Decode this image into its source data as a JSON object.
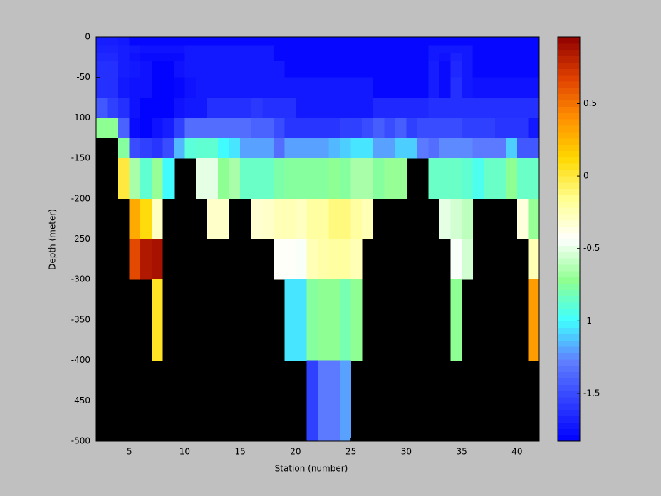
{
  "chart_data": {
    "type": "heatmap",
    "xlabel": "Station (number)",
    "ylabel": "Depth (meter)",
    "x": [
      2,
      3,
      4,
      5,
      6,
      7,
      8,
      9,
      10,
      11,
      12,
      13,
      14,
      15,
      16,
      17,
      18,
      19,
      20,
      21,
      22,
      23,
      24,
      25,
      26,
      27,
      28,
      29,
      30,
      31,
      32,
      33,
      34,
      35,
      36,
      37,
      38,
      39,
      40,
      41,
      42
    ],
    "y": [
      0,
      -10,
      -20,
      -30,
      -50,
      -75,
      -100,
      -125,
      -150,
      -200,
      -250,
      -300,
      -400,
      -500
    ],
    "values": [
      [
        -1.7,
        -1.7,
        -1.72,
        -1.8,
        -1.8,
        -1.8,
        -1.8,
        -1.8,
        -1.8,
        -1.8,
        -1.8,
        -1.8,
        -1.8,
        -1.8,
        -1.8,
        -1.8,
        -1.8,
        -1.8,
        -1.8,
        -1.8,
        -1.8,
        -1.8,
        -1.8,
        -1.8,
        -1.8,
        -1.8,
        -1.8,
        -1.8,
        -1.8,
        -1.8,
        -1.8,
        -1.8,
        -1.8,
        -1.8,
        -1.8,
        -1.8,
        -1.8,
        -1.8,
        -1.8,
        -1.8
      ],
      [
        -1.68,
        -1.68,
        -1.7,
        -1.72,
        -1.75,
        -1.75,
        -1.75,
        -1.75,
        -1.72,
        -1.72,
        -1.72,
        -1.72,
        -1.72,
        -1.72,
        -1.72,
        -1.72,
        -1.8,
        -1.8,
        -1.8,
        -1.8,
        -1.8,
        -1.8,
        -1.8,
        -1.8,
        -1.8,
        -1.8,
        -1.8,
        -1.8,
        -1.8,
        -1.8,
        -1.72,
        -1.72,
        -1.72,
        -1.72,
        -1.8,
        -1.8,
        -1.8,
        -1.8,
        -1.8,
        -1.8
      ],
      [
        -1.65,
        -1.65,
        -1.7,
        -1.75,
        -1.78,
        -1.78,
        -1.78,
        -1.78,
        -1.72,
        -1.72,
        -1.72,
        -1.72,
        -1.72,
        -1.72,
        -1.72,
        -1.72,
        -1.8,
        -1.8,
        -1.8,
        -1.8,
        -1.8,
        -1.8,
        -1.8,
        -1.8,
        -1.8,
        -1.8,
        -1.8,
        -1.8,
        -1.8,
        -1.8,
        -1.72,
        -1.75,
        -1.68,
        -1.72,
        -1.8,
        -1.8,
        -1.8,
        -1.8,
        -1.8,
        -1.8
      ],
      [
        -1.62,
        -1.62,
        -1.7,
        -1.72,
        -1.75,
        -1.82,
        -1.82,
        -1.75,
        -1.72,
        -1.72,
        -1.72,
        -1.72,
        -1.72,
        -1.72,
        -1.72,
        -1.72,
        -1.72,
        -1.8,
        -1.8,
        -1.8,
        -1.8,
        -1.8,
        -1.8,
        -1.8,
        -1.8,
        -1.8,
        -1.8,
        -1.8,
        -1.8,
        -1.8,
        -1.7,
        -1.78,
        -1.65,
        -1.72,
        -1.8,
        -1.8,
        -1.8,
        -1.8,
        -1.8,
        -1.8
      ],
      [
        -1.62,
        -1.62,
        -1.72,
        -1.75,
        -1.75,
        -1.82,
        -1.82,
        -1.8,
        -1.75,
        -1.72,
        -1.72,
        -1.72,
        -1.72,
        -1.72,
        -1.72,
        -1.72,
        -1.72,
        -1.72,
        -1.72,
        -1.72,
        -1.72,
        -1.72,
        -1.72,
        -1.72,
        -1.72,
        -1.8,
        -1.8,
        -1.8,
        -1.8,
        -1.8,
        -1.7,
        -1.78,
        -1.62,
        -1.72,
        -1.75,
        -1.75,
        -1.75,
        -1.75,
        -1.75,
        -1.75
      ],
      [
        -1.45,
        -1.55,
        -1.62,
        -1.75,
        -1.82,
        -1.82,
        -1.82,
        -1.75,
        -1.72,
        -1.72,
        -1.62,
        -1.62,
        -1.62,
        -1.62,
        -1.58,
        -1.62,
        -1.62,
        -1.62,
        -1.72,
        -1.72,
        -1.72,
        -1.72,
        -1.72,
        -1.72,
        -1.72,
        -1.65,
        -1.65,
        -1.65,
        -1.65,
        -1.65,
        -1.62,
        -1.62,
        -1.62,
        -1.62,
        -1.62,
        -1.62,
        -1.62,
        -1.62,
        -1.62,
        -1.62
      ],
      [
        -0.72,
        -0.72,
        -1.4,
        -1.78,
        -1.82,
        -1.75,
        -1.7,
        -1.55,
        -1.35,
        -1.35,
        -1.35,
        -1.35,
        -1.35,
        -1.35,
        -1.4,
        -1.4,
        -1.5,
        -1.6,
        -1.6,
        -1.6,
        -1.6,
        -1.6,
        -1.55,
        -1.55,
        -1.5,
        -1.42,
        -1.5,
        -1.42,
        -1.55,
        -1.5,
        -1.5,
        -1.5,
        -1.5,
        -1.55,
        -1.55,
        -1.55,
        -1.6,
        -1.6,
        -1.6,
        -1.72
      ],
      [
        null,
        null,
        -0.75,
        -1.5,
        -1.55,
        -1.6,
        -1.5,
        -1.15,
        -0.9,
        -0.88,
        -0.88,
        -1.0,
        -1.05,
        -1.2,
        -1.2,
        -1.2,
        -1.35,
        -1.2,
        -1.2,
        -1.2,
        -1.2,
        -1.15,
        -1.1,
        -1.05,
        -1.05,
        -1.2,
        -1.2,
        -1.1,
        -1.1,
        -1.3,
        -1.35,
        -1.25,
        -1.25,
        -1.25,
        -1.3,
        -1.3,
        -1.3,
        -1.1,
        -1.45,
        -1.45
      ],
      [
        null,
        null,
        0.0,
        -0.65,
        -0.88,
        -0.7,
        -1.0,
        null,
        null,
        -0.5,
        -0.5,
        -0.72,
        -0.65,
        -0.85,
        -0.85,
        -0.85,
        -0.78,
        -0.75,
        -0.75,
        -0.75,
        -0.75,
        -0.72,
        -0.75,
        -0.65,
        -0.65,
        -0.75,
        -0.7,
        -0.7,
        null,
        null,
        -0.85,
        -0.85,
        -0.85,
        -0.88,
        -0.95,
        -0.85,
        -0.85,
        -0.72,
        -0.85,
        -0.85
      ],
      [
        null,
        null,
        null,
        0.3,
        0.1,
        -0.28,
        null,
        null,
        null,
        null,
        -0.3,
        -0.3,
        null,
        null,
        -0.32,
        -0.3,
        -0.25,
        -0.25,
        -0.28,
        -0.2,
        -0.2,
        -0.12,
        -0.12,
        -0.2,
        -0.25,
        null,
        null,
        null,
        null,
        null,
        null,
        -0.5,
        -0.55,
        -0.6,
        null,
        null,
        null,
        null,
        -0.35,
        -0.7
      ],
      [
        null,
        null,
        null,
        0.65,
        0.85,
        0.88,
        null,
        null,
        null,
        null,
        null,
        null,
        null,
        null,
        null,
        null,
        -0.42,
        -0.42,
        -0.45,
        -0.25,
        -0.22,
        -0.2,
        -0.2,
        -0.25,
        null,
        null,
        null,
        null,
        null,
        null,
        null,
        null,
        -0.45,
        -0.55,
        null,
        null,
        null,
        null,
        null,
        -0.25
      ],
      [
        null,
        null,
        null,
        null,
        null,
        0.05,
        null,
        null,
        null,
        null,
        null,
        null,
        null,
        null,
        null,
        null,
        null,
        -1.05,
        -1.05,
        -0.75,
        -0.72,
        -0.72,
        -0.8,
        -0.72,
        null,
        null,
        null,
        null,
        null,
        null,
        null,
        null,
        -0.72,
        null,
        null,
        null,
        null,
        null,
        null,
        0.35
      ],
      [
        null,
        null,
        null,
        null,
        null,
        null,
        null,
        null,
        null,
        null,
        null,
        null,
        null,
        null,
        null,
        null,
        null,
        null,
        null,
        -1.55,
        -1.3,
        -1.3,
        -1.2,
        null,
        null,
        null,
        null,
        null,
        null,
        null,
        null,
        null,
        null,
        null,
        null,
        null,
        null,
        null,
        null,
        null
      ]
    ],
    "xlim": [
      2,
      42
    ],
    "ylim": [
      -500,
      0
    ],
    "xticks": [
      5,
      10,
      15,
      20,
      25,
      30,
      35,
      40
    ],
    "yticks": [
      -500,
      -450,
      -400,
      -350,
      -300,
      -250,
      -200,
      -150,
      -100,
      -50,
      0
    ],
    "clim": [
      -1.83,
      0.96
    ],
    "cticks": [
      -1.5,
      -1,
      -0.5,
      0,
      0.5
    ],
    "colormap": [
      "#0000ff",
      "#3040ff",
      "#6080ff",
      "#40ffff",
      "#90ff90",
      "#ffffff",
      "#ffff90",
      "#ffd800",
      "#ff9000",
      "#e04000",
      "#900000"
    ],
    "nan_color": "#000000"
  }
}
